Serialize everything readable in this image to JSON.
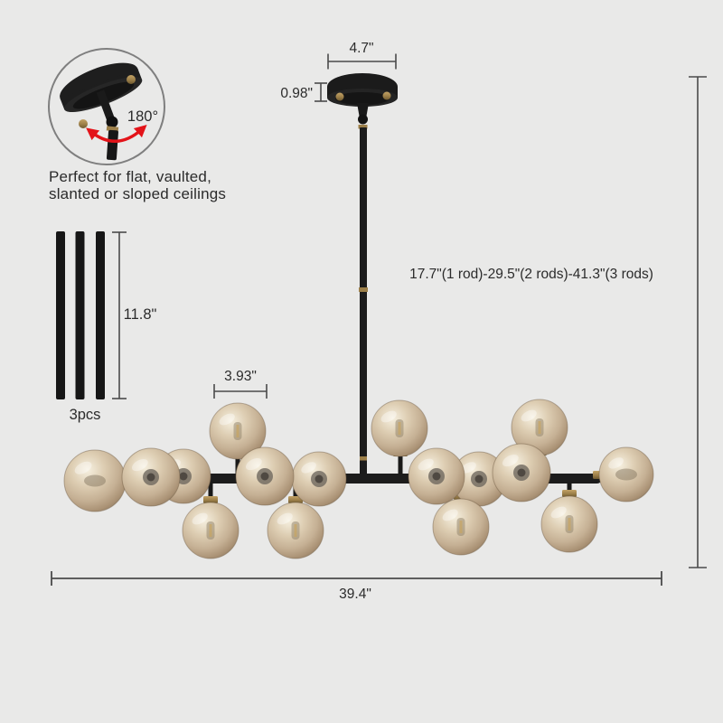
{
  "product_diagram": {
    "detail_callout": {
      "angle_label": "180°",
      "caption_line1": "Perfect for flat, vaulted,",
      "caption_line2": "slanted or sloped ceilings"
    },
    "rods_detail": {
      "length_label": "11.8\"",
      "count_label": "3pcs"
    },
    "dimensions": {
      "canopy_width": "4.7\"",
      "canopy_height": "0.98\"",
      "globe_diameter": "3.93\"",
      "fixture_width": "39.4\"",
      "height_options": "17.7\"(1 rod)-29.5\"(2 rods)-41.3\"(3 rods)"
    },
    "colors": {
      "background": "#e9e9e8",
      "fixture_black": "#1c1c1c",
      "brass_gold": "#a08349",
      "glass_champagne": "#cfc0a8",
      "arrow_red": "#e31319",
      "dimension_line": "#4a4a4a",
      "text": "#2b2b2b"
    }
  }
}
